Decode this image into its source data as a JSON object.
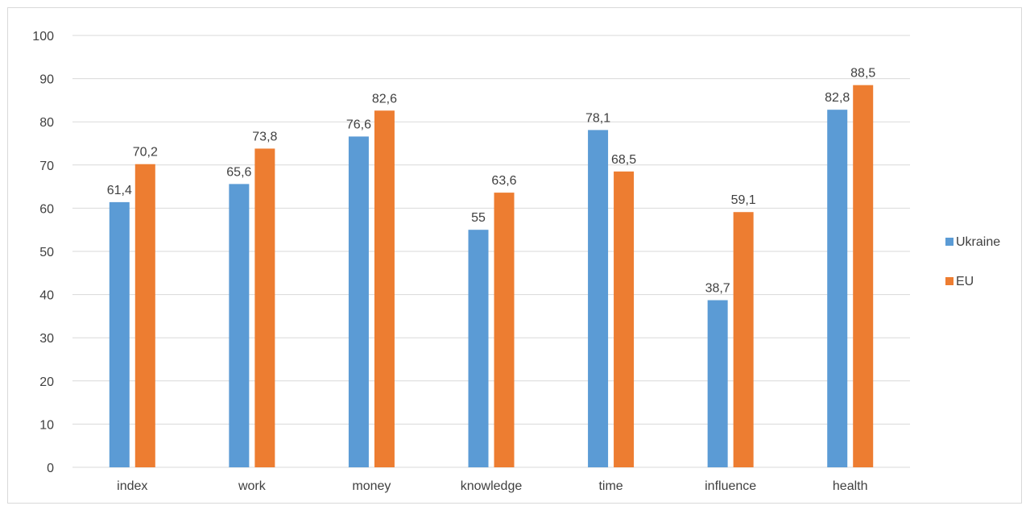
{
  "chart_data": {
    "type": "bar",
    "categories": [
      "index",
      "work",
      "money",
      "knowledge",
      "time",
      "influence",
      "health"
    ],
    "series": [
      {
        "name": "Ukraine",
        "values": [
          61.4,
          65.6,
          76.6,
          55,
          78.1,
          38.7,
          82.8
        ],
        "labels": [
          "61,4",
          "65,6",
          "76,6",
          "55",
          "78,1",
          "38,7",
          "82,8"
        ],
        "color": "#5b9bd5"
      },
      {
        "name": "EU",
        "values": [
          70.2,
          73.8,
          82.6,
          63.6,
          68.5,
          59.1,
          88.5
        ],
        "labels": [
          "70,2",
          "73,8",
          "82,6",
          "63,6",
          "68,5",
          "59,1",
          "88,5"
        ],
        "color": "#ed7d31"
      }
    ],
    "ylim": [
      0,
      100
    ],
    "yticks": [
      "0",
      "10",
      "20",
      "30",
      "40",
      "50",
      "60",
      "70",
      "80",
      "90",
      "100"
    ],
    "grid": true,
    "legend_position": "right",
    "gridline_color": "#d9d9d9"
  }
}
